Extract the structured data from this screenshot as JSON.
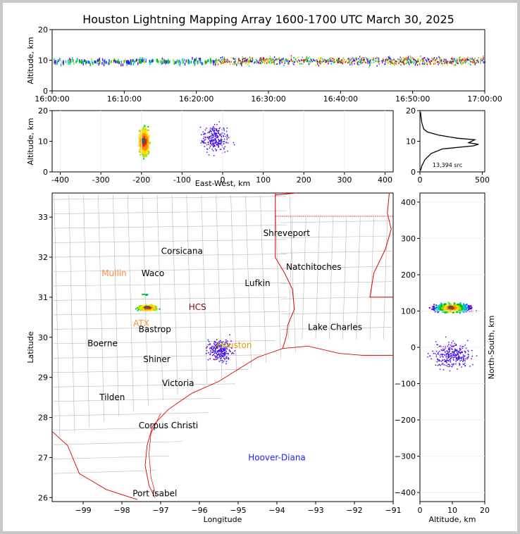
{
  "title": "Houston Lightning Mapping Array 1600-1700 UTC March 30, 2025",
  "colors": {
    "border_state": "#e00000",
    "border_county": "#b8b8b8",
    "city_default": "#000000",
    "city_orange": "#ff8c3a",
    "city_blue": "#2020ff",
    "city_gold": "#e0a000",
    "city_darkred": "#8b0000"
  },
  "chart_data": [
    {
      "id": "time_altitude",
      "type": "scatter",
      "xlabel": "",
      "ylabel": "Altitude, km",
      "x_ticks": [
        "16:00:00",
        "16:10:00",
        "16:20:00",
        "16:30:00",
        "16:40:00",
        "16:50:00",
        "17:00:00"
      ],
      "ylim": [
        0,
        20
      ],
      "y_ticks": [
        0,
        10,
        20
      ],
      "description_of_marks": "LMA source density colored by time; scattered sources 16:00-16:20 near 9-10 km, dense band 16:20-17:00 between 6 and 14 km"
    },
    {
      "id": "eastwest_altitude",
      "type": "scatter",
      "xlabel": "East-West, km",
      "ylabel": "Altitude, km",
      "xlim": [
        -420,
        420
      ],
      "ylim": [
        0,
        20
      ],
      "x_ticks": [
        -400,
        -300,
        -200,
        -100,
        0,
        100,
        200,
        300,
        400
      ],
      "y_ticks": [
        0,
        10,
        20
      ],
      "clusters": [
        {
          "x_center": -195,
          "z_center": 10,
          "density": "high"
        },
        {
          "x_center": -20,
          "z_center": 11,
          "density": "low"
        }
      ]
    },
    {
      "id": "altitude_histogram",
      "type": "line",
      "xlabel": "",
      "ylabel": "",
      "xlim": [
        0,
        520
      ],
      "ylim": [
        0,
        20
      ],
      "x_ticks": [
        0,
        500
      ],
      "y_ticks": [
        0,
        10,
        20
      ],
      "annotation": "13,394 src",
      "profile": [
        {
          "alt": 0.5,
          "count": 5
        },
        {
          "alt": 2,
          "count": 15
        },
        {
          "alt": 4,
          "count": 40
        },
        {
          "alt": 6,
          "count": 90
        },
        {
          "alt": 7.5,
          "count": 180
        },
        {
          "alt": 8.5,
          "count": 430
        },
        {
          "alt": 9,
          "count": 470
        },
        {
          "alt": 9.5,
          "count": 390
        },
        {
          "alt": 10.5,
          "count": 440
        },
        {
          "alt": 11,
          "count": 300
        },
        {
          "alt": 12,
          "count": 150
        },
        {
          "alt": 13,
          "count": 60
        },
        {
          "alt": 14,
          "count": 30
        },
        {
          "alt": 16,
          "count": 15
        },
        {
          "alt": 18,
          "count": 8
        },
        {
          "alt": 19.5,
          "count": 5
        }
      ]
    },
    {
      "id": "plan_view",
      "type": "scatter",
      "xlabel": "Longitude",
      "ylabel": "Latitude",
      "xlim": [
        -99.8,
        -91
      ],
      "ylim": [
        25.9,
        33.6
      ],
      "x_ticks": [
        -99,
        -98,
        -97,
        -96,
        -95,
        -94,
        -93,
        -92,
        -91
      ],
      "y_ticks": [
        26,
        27,
        28,
        29,
        30,
        31,
        32,
        33
      ],
      "clusters": [
        {
          "lon": -97.35,
          "lat": 30.75,
          "density": "high"
        },
        {
          "lon": -95.5,
          "lat": 29.7,
          "density": "low"
        }
      ]
    },
    {
      "id": "altitude_northsouth",
      "type": "scatter",
      "xlabel": "Altitude, km",
      "ylabel": "North-South, km",
      "xlim": [
        0,
        20
      ],
      "ylim": [
        -425,
        425
      ],
      "x_ticks": [
        0,
        10,
        20
      ],
      "y_ticks": [
        -400,
        -300,
        -200,
        -100,
        0,
        100,
        200,
        300,
        400
      ]
    }
  ],
  "cities": [
    {
      "name": "Shreveport",
      "lon": -93.75,
      "lat": 32.6,
      "color": "#000000"
    },
    {
      "name": "Corsicana",
      "lon": -96.45,
      "lat": 32.15,
      "color": "#000000"
    },
    {
      "name": "Natchitoches",
      "lon": -93.05,
      "lat": 31.75,
      "color": "#000000"
    },
    {
      "name": "Mullin",
      "lon": -98.2,
      "lat": 31.6,
      "color": "#ff8c3a"
    },
    {
      "name": "Waco",
      "lon": -97.2,
      "lat": 31.6,
      "color": "#000000"
    },
    {
      "name": "Lufkin",
      "lon": -94.5,
      "lat": 31.35,
      "color": "#000000"
    },
    {
      "name": "HCS",
      "lon": -96.05,
      "lat": 30.75,
      "color": "#8b0000"
    },
    {
      "name": "ATX",
      "lon": -97.5,
      "lat": 30.35,
      "color": "#ff8c3a"
    },
    {
      "name": "Bastrop",
      "lon": -97.15,
      "lat": 30.2,
      "color": "#000000"
    },
    {
      "name": "Lake Charles",
      "lon": -92.5,
      "lat": 30.25,
      "color": "#000000"
    },
    {
      "name": "Boerne",
      "lon": -98.5,
      "lat": 29.85,
      "color": "#000000"
    },
    {
      "name": "Houston",
      "lon": -95.1,
      "lat": 29.8,
      "color": "#e0a000"
    },
    {
      "name": "Shiner",
      "lon": -97.1,
      "lat": 29.45,
      "color": "#000000"
    },
    {
      "name": "Victoria",
      "lon": -96.55,
      "lat": 28.85,
      "color": "#000000"
    },
    {
      "name": "Tilden",
      "lon": -98.25,
      "lat": 28.5,
      "color": "#000000"
    },
    {
      "name": "Corpus Christi",
      "lon": -96.8,
      "lat": 27.8,
      "color": "#000000"
    },
    {
      "name": "Hoover-Diana",
      "lon": -94.0,
      "lat": 27.0,
      "color": "#2020ff"
    },
    {
      "name": "Port Isabel",
      "lon": -97.15,
      "lat": 26.1,
      "color": "#000000"
    }
  ]
}
